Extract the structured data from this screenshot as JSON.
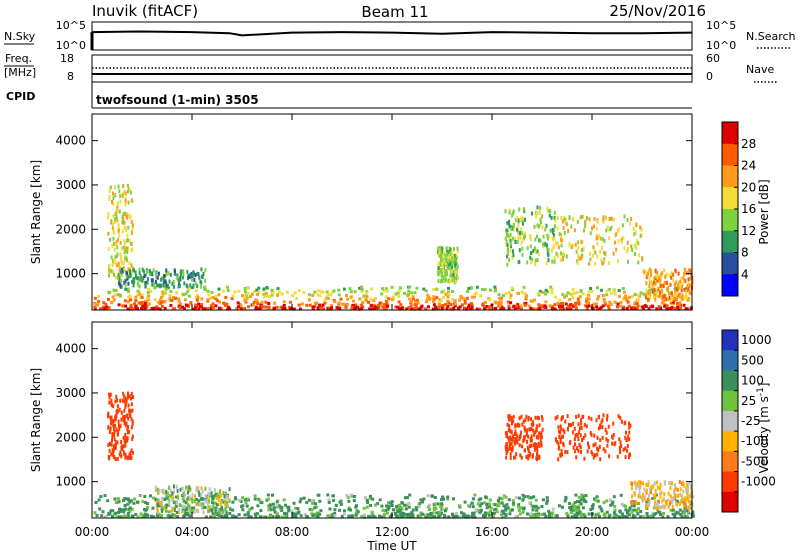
{
  "header": {
    "station": "Inuvik (fitACF)",
    "beam": "Beam 11",
    "date": "25/Nov/2016"
  },
  "nsky_panel": {
    "left_label": "N.Sky",
    "right_label": "N.Search",
    "left_ticks": [
      "10^5",
      "10^0"
    ],
    "right_ticks": [
      "10^5",
      "10^0"
    ]
  },
  "freq_panel": {
    "left_label_line1": "Freq.",
    "left_label_line2": "[MHz]",
    "right_label": "Nave",
    "left_ticks": [
      "18",
      "8"
    ],
    "right_ticks": [
      "60",
      "0"
    ]
  },
  "cpid": {
    "label": "CPID",
    "value": "twofsound (1-min) 3505"
  },
  "x_axis": {
    "tick_labels": [
      "00:00",
      "04:00",
      "08:00",
      "12:00",
      "16:00",
      "20:00",
      "00:00"
    ],
    "title": "Time UT"
  },
  "y_axis": {
    "title": "Slant Range [km]",
    "tick_labels": [
      "1000",
      "2000",
      "3000",
      "4000"
    ]
  },
  "power_colorbar": {
    "title": "Power [dB]",
    "labels": [
      "28",
      "24",
      "20",
      "16",
      "12",
      "8",
      "4"
    ],
    "colors": [
      "#e10000",
      "#ff5a00",
      "#ff9a1a",
      "#f2dc3a",
      "#7ed23c",
      "#2f9a5a",
      "#2a4f9e",
      "#0000ff"
    ]
  },
  "velocity_colorbar": {
    "title": "Velocity [m s^-1]",
    "labels": [
      "1000",
      "500",
      "100",
      "25",
      "-25",
      "-100",
      "-500",
      "-1000"
    ],
    "colors": [
      "#2233bb",
      "#2f6fae",
      "#3a8f5a",
      "#6ec23c",
      "#c0c0c0",
      "#ffb000",
      "#ff7a1a",
      "#ff3a00",
      "#e00000"
    ]
  },
  "chart_data": [
    {
      "type": "line",
      "panel": "N.Sky / N.Search",
      "x_unit": "hours UT",
      "x": [
        0,
        2,
        4,
        5.5,
        6,
        8,
        10,
        12,
        14,
        16,
        18,
        20,
        22,
        24
      ],
      "series": [
        {
          "values": [
            3.2,
            3.3,
            3.2,
            3.0,
            2.6,
            3.1,
            3.2,
            3.1,
            2.9,
            3.2,
            3.1,
            3.0,
            3.0,
            3.1
          ]
        }
      ],
      "y_scale": "log",
      "ylim": [
        0,
        5
      ]
    },
    {
      "type": "line",
      "panel": "Freq. / Nave",
      "x_unit": "hours UT",
      "x": [
        0,
        24
      ],
      "series": [
        {
          "values": [
            10.8,
            10.8
          ]
        },
        {
          "values": [
            10,
            10
          ]
        }
      ],
      "ylim": [
        8,
        18
      ]
    },
    {
      "type": "scatter",
      "panel": "Power",
      "xlabel": "Time UT",
      "ylabel": "Slant Range [km]",
      "xlim": [
        0,
        24
      ],
      "ylim": [
        180,
        4600
      ],
      "x_ticks": [
        0,
        4,
        8,
        12,
        16,
        20,
        24
      ],
      "y_ticks": [
        1000,
        2000,
        3000,
        4000
      ],
      "clusters": [
        {
          "t0": 0,
          "t1": 24,
          "r0": 200,
          "r1": 700,
          "band": "near-range E/F echoes",
          "dominant_power_db": 28
        },
        {
          "t0": 0.6,
          "t1": 1.6,
          "r0": 900,
          "r1": 3000,
          "dominant_power_db": 16
        },
        {
          "t0": 1.0,
          "t1": 4.5,
          "r0": 700,
          "r1": 1100,
          "dominant_power_db": 8
        },
        {
          "t0": 13.8,
          "t1": 14.6,
          "r0": 800,
          "r1": 1600,
          "dominant_power_db": 12
        },
        {
          "t0": 16.5,
          "t1": 18.5,
          "r0": 1200,
          "r1": 2500,
          "dominant_power_db": 12
        },
        {
          "t0": 18.5,
          "t1": 22.0,
          "r0": 1200,
          "r1": 2300,
          "dominant_power_db": 16
        },
        {
          "t0": 22.0,
          "t1": 24.0,
          "r0": 400,
          "r1": 1100,
          "dominant_power_db": 20
        }
      ],
      "color_scale": {
        "min": 0,
        "max": 30,
        "unit": "dB"
      }
    },
    {
      "type": "scatter",
      "panel": "Velocity",
      "xlabel": "Time UT",
      "ylabel": "Slant Range [km]",
      "xlim": [
        0,
        24
      ],
      "ylim": [
        180,
        4600
      ],
      "x_ticks": [
        0,
        4,
        8,
        12,
        16,
        20,
        24
      ],
      "y_ticks": [
        1000,
        2000,
        3000,
        4000
      ],
      "clusters": [
        {
          "t0": 0,
          "t1": 24,
          "r0": 200,
          "r1": 700,
          "dominant_velocity_ms": 100
        },
        {
          "t0": 0.6,
          "t1": 1.6,
          "r0": 1500,
          "r1": 3000,
          "dominant_velocity_ms": -500
        },
        {
          "t0": 2.5,
          "t1": 5.5,
          "r0": 300,
          "r1": 900,
          "dominant_velocity_ms": 0
        },
        {
          "t0": 16.5,
          "t1": 18.0,
          "r0": 1500,
          "r1": 2500,
          "dominant_velocity_ms": -500
        },
        {
          "t0": 18.5,
          "t1": 21.5,
          "r0": 1500,
          "r1": 2500,
          "dominant_velocity_ms": -500
        },
        {
          "t0": 21.5,
          "t1": 24.0,
          "r0": 400,
          "r1": 1000,
          "dominant_velocity_ms": -100
        }
      ],
      "color_scale": {
        "min": -1000,
        "max": 1000,
        "unit": "m s^-1"
      }
    }
  ]
}
